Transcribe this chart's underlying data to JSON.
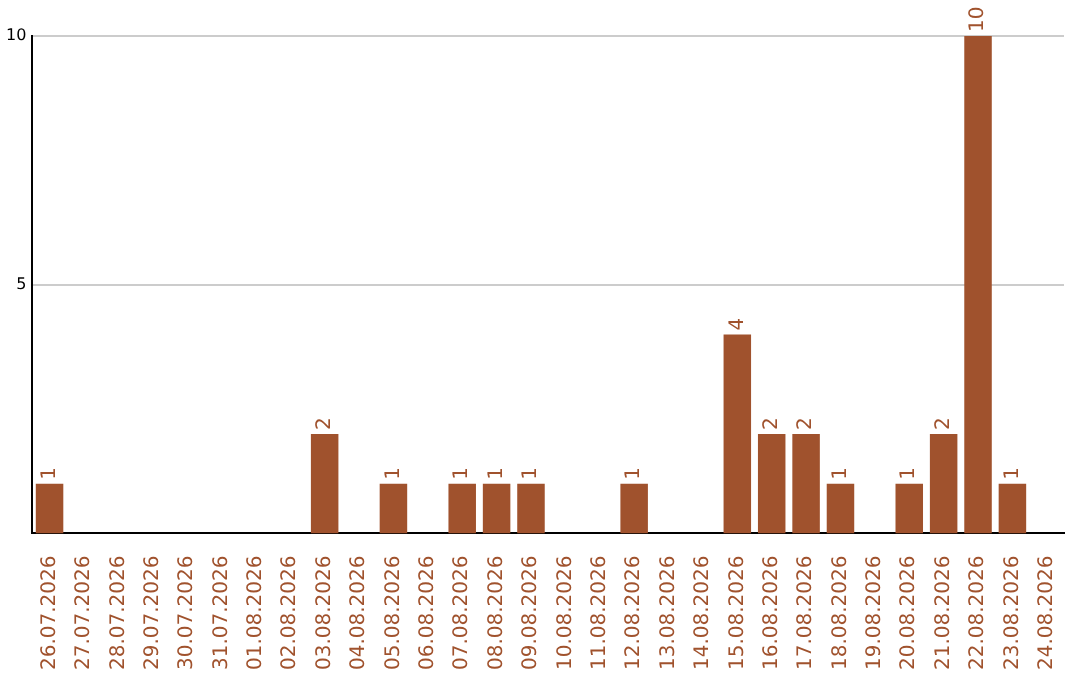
{
  "chart_data": {
    "type": "bar",
    "categories": [
      "26.07.2026",
      "27.07.2026",
      "28.07.2026",
      "29.07.2026",
      "30.07.2026",
      "31.07.2026",
      "01.08.2026",
      "02.08.2026",
      "03.08.2026",
      "04.08.2026",
      "05.08.2026",
      "06.08.2026",
      "07.08.2026",
      "08.08.2026",
      "09.08.2026",
      "10.08.2026",
      "11.08.2026",
      "12.08.2026",
      "13.08.2026",
      "14.08.2026",
      "15.08.2026",
      "16.08.2026",
      "17.08.2026",
      "18.08.2026",
      "19.08.2026",
      "20.08.2026",
      "21.08.2026",
      "22.08.2026",
      "23.08.2026",
      "24.08.2026"
    ],
    "values": [
      1,
      0,
      0,
      0,
      0,
      0,
      0,
      0,
      2,
      0,
      1,
      0,
      1,
      1,
      1,
      0,
      0,
      1,
      0,
      0,
      4,
      2,
      2,
      1,
      0,
      1,
      2,
      10,
      1,
      0
    ],
    "value_labels": [
      "1",
      null,
      null,
      null,
      null,
      null,
      null,
      null,
      "2",
      null,
      "1",
      null,
      "1",
      "1",
      "1",
      null,
      null,
      "1",
      null,
      null,
      "4",
      "2",
      "2",
      "1",
      null,
      "1",
      "2",
      "10",
      "1",
      null
    ],
    "color": "#a0522d",
    "ylim": [
      0,
      10
    ],
    "yticks": [
      5,
      10
    ],
    "grid": "y",
    "legend": false
  }
}
